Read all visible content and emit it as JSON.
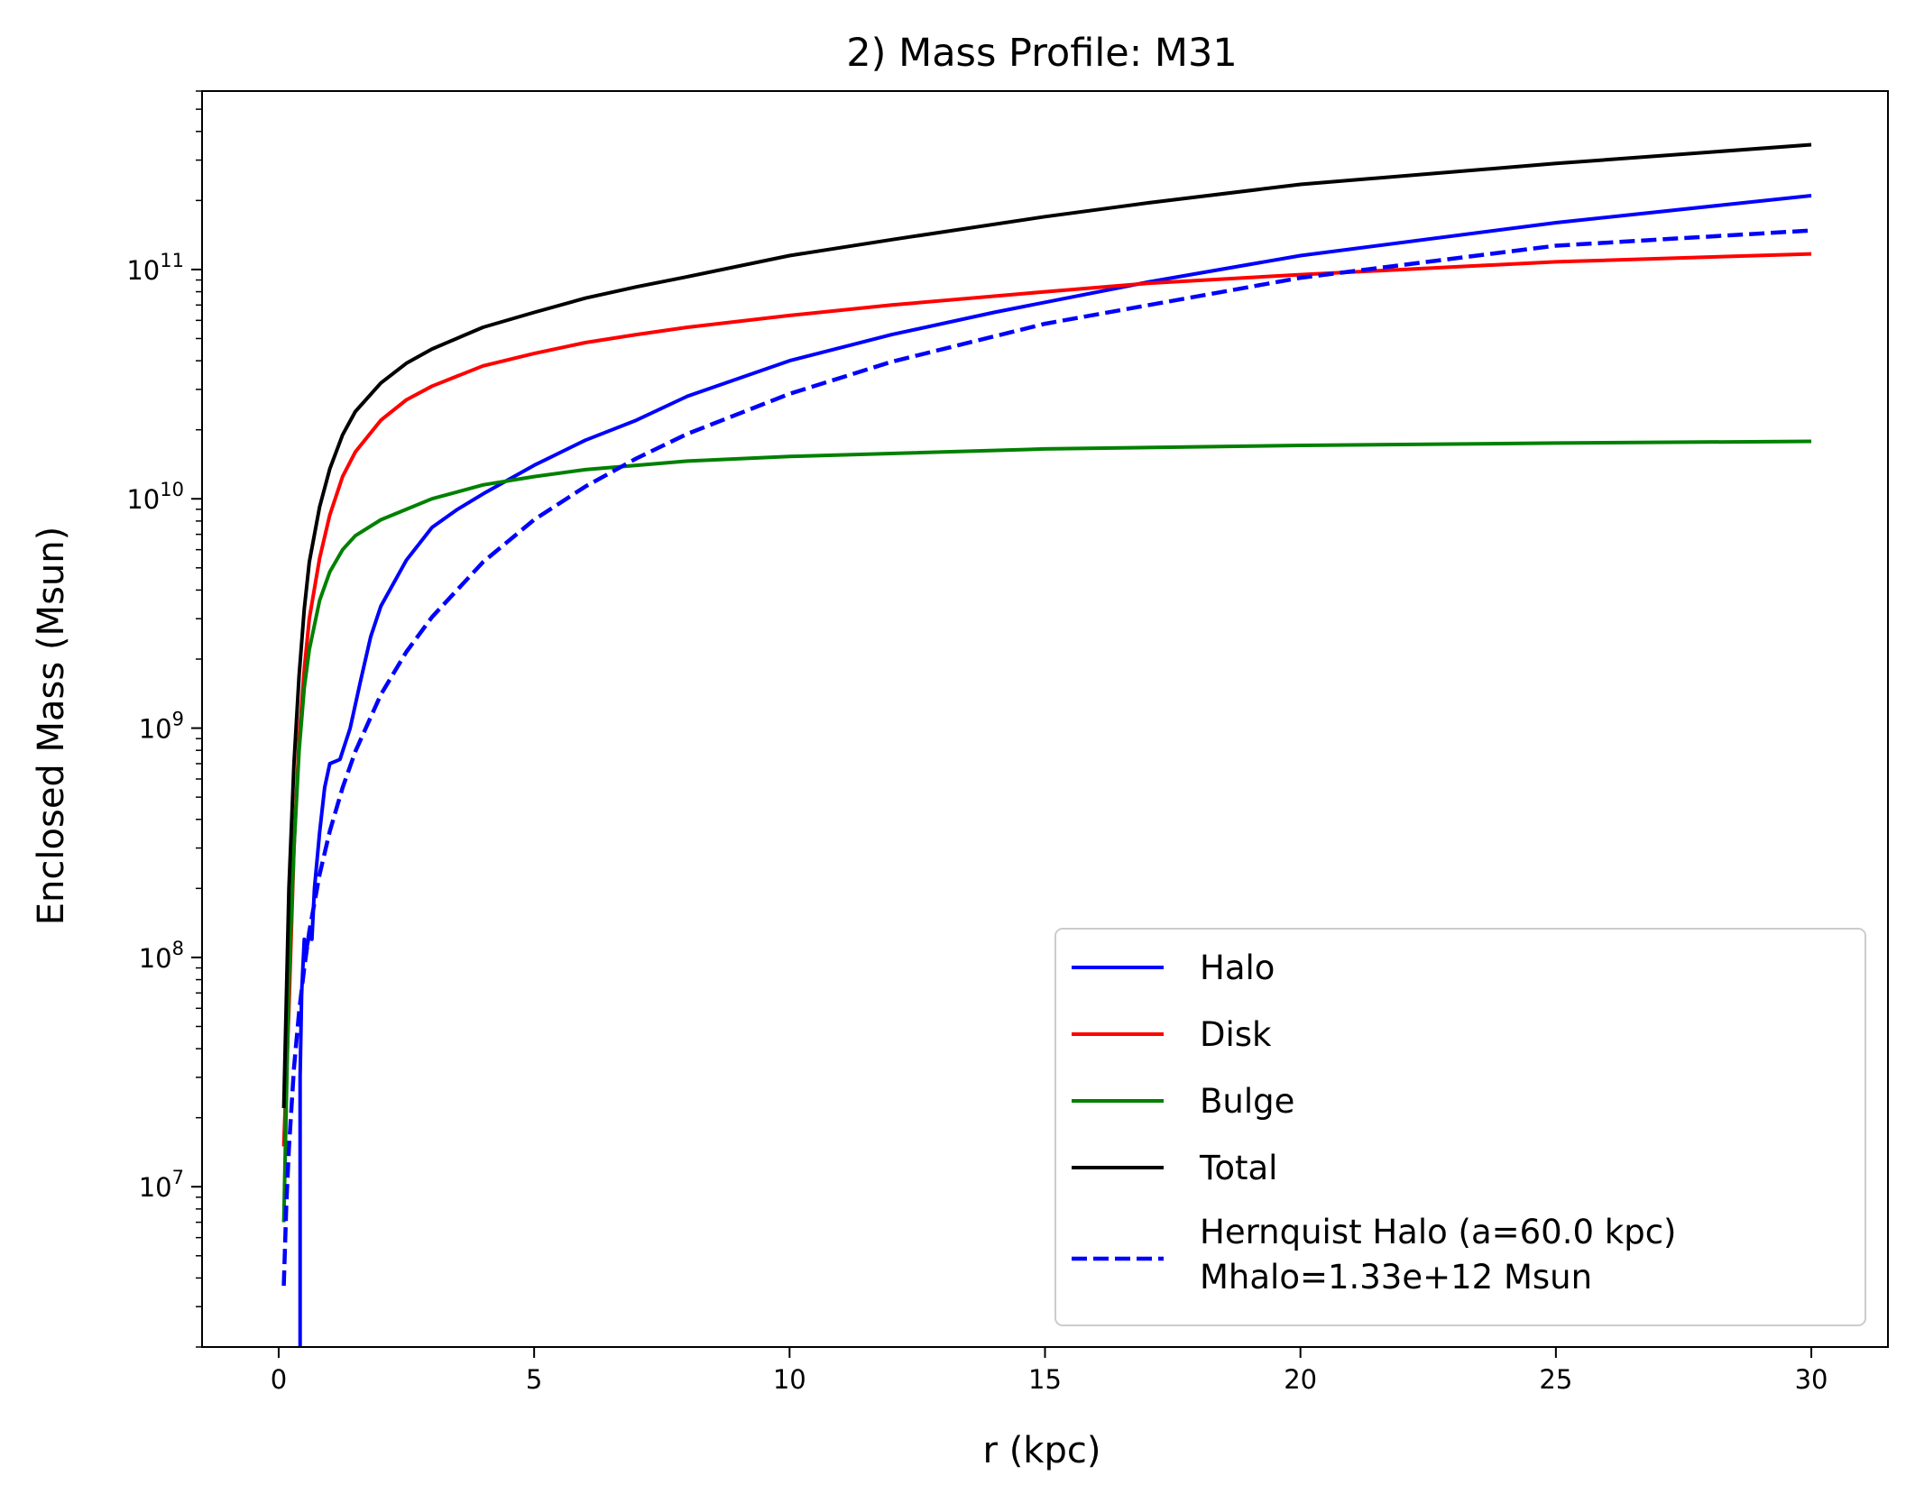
{
  "chart_data": {
    "type": "line",
    "title": "2) Mass Profile: M31",
    "xlabel": "r (kpc)",
    "ylabel": "Enclosed Mass (Msun)",
    "xlim": [
      -1.5,
      31.5
    ],
    "ylim": [
      2000000,
      600000000000
    ],
    "yscale": "log",
    "grid": false,
    "legend_position": "lower-right",
    "x_ticks": [
      {
        "value": 0,
        "label": "0"
      },
      {
        "value": 5,
        "label": "5"
      },
      {
        "value": 10,
        "label": "10"
      },
      {
        "value": 15,
        "label": "15"
      },
      {
        "value": 20,
        "label": "20"
      },
      {
        "value": 25,
        "label": "25"
      },
      {
        "value": 30,
        "label": "30"
      }
    ],
    "y_ticks": [
      {
        "value": 10000000,
        "base": "10",
        "exp": "7"
      },
      {
        "value": 100000000,
        "base": "10",
        "exp": "8"
      },
      {
        "value": 1000000000,
        "base": "10",
        "exp": "9"
      },
      {
        "value": 10000000000,
        "base": "10",
        "exp": "10"
      },
      {
        "value": 100000000000,
        "base": "10",
        "exp": "11"
      }
    ],
    "series": [
      {
        "name": "Halo",
        "color": "#0000ff",
        "dash": false,
        "x": [
          0.42,
          0.42,
          0.45,
          0.5,
          0.55,
          0.6,
          0.65,
          0.7,
          0.8,
          0.9,
          1.0,
          1.2,
          1.4,
          1.6,
          1.8,
          2.0,
          2.5,
          3.0,
          3.5,
          4.0,
          5.0,
          6.0,
          7.0,
          8.0,
          10.0,
          12.0,
          14.0,
          17.0,
          20.0,
          25.0,
          30.0
        ],
        "y": [
          2000000,
          30000000,
          70000000,
          120000000,
          110000000,
          125000000,
          120000000,
          200000000,
          350000000,
          550000000,
          700000000,
          730000000,
          1000000000,
          1600000000,
          2500000000,
          3400000000,
          5400000000,
          7500000000,
          9000000000,
          10500000000,
          14000000000,
          18000000000,
          22000000000,
          28000000000,
          40000000000,
          52000000000,
          65000000000,
          88000000000,
          115000000000,
          160000000000,
          210000000000
        ]
      },
      {
        "name": "Disk",
        "color": "#ff0000",
        "dash": false,
        "x": [
          0.1,
          0.2,
          0.3,
          0.4,
          0.5,
          0.6,
          0.8,
          1.0,
          1.25,
          1.5,
          2.0,
          2.5,
          3.0,
          4.0,
          5.0,
          6.0,
          7.0,
          8.0,
          10.0,
          12.0,
          15.0,
          17.0,
          20.0,
          25.0,
          30.0
        ],
        "y": [
          15000000,
          60000000,
          300000000,
          900000000,
          1800000000,
          3000000000,
          5500000000,
          8500000000,
          12500000000,
          16000000000,
          22000000000,
          27000000000,
          31000000000,
          38000000000,
          43000000000,
          48000000000,
          52000000000,
          56000000000,
          63000000000,
          70000000000,
          80000000000,
          87000000000,
          95000000000,
          108000000000,
          117000000000
        ]
      },
      {
        "name": "Bulge",
        "color": "#008000",
        "dash": false,
        "x": [
          0.1,
          0.2,
          0.3,
          0.4,
          0.5,
          0.6,
          0.8,
          1.0,
          1.25,
          1.5,
          2.0,
          2.5,
          3.0,
          4.0,
          5.0,
          6.0,
          7.0,
          8.0,
          10.0,
          15.0,
          20.0,
          25.0,
          30.0
        ],
        "y": [
          7000000,
          80000000,
          300000000,
          800000000,
          1500000000,
          2200000000,
          3600000000,
          4800000000,
          6000000000,
          6900000000,
          8100000000,
          9000000000,
          10000000000,
          11500000000,
          12500000000,
          13400000000,
          14000000000,
          14600000000,
          15300000000,
          16500000000,
          17100000000,
          17500000000,
          17800000000
        ]
      },
      {
        "name": "Total",
        "color": "#000000",
        "dash": false,
        "x": [
          0.1,
          0.2,
          0.3,
          0.4,
          0.5,
          0.6,
          0.8,
          1.0,
          1.25,
          1.5,
          2.0,
          2.5,
          3.0,
          4.0,
          5.0,
          6.0,
          7.0,
          8.0,
          10.0,
          12.0,
          15.0,
          17.0,
          20.0,
          25.0,
          30.0
        ],
        "y": [
          22000000,
          200000000,
          700000000,
          1700000000,
          3300000000,
          5300000000,
          9200000000,
          13500000000,
          19000000000,
          24000000000,
          32000000000,
          39000000000,
          45000000000,
          56000000000,
          65000000000,
          75000000000,
          84000000000,
          93000000000,
          115000000000,
          135000000000,
          170000000000,
          195000000000,
          235000000000,
          290000000000,
          350000000000
        ]
      },
      {
        "name": "Hernquist Halo (a=60.0 kpc)\nMhalo=1.33e+12 Msun",
        "color": "#0000ff",
        "dash": true,
        "x": [
          0.1,
          0.15,
          0.2,
          0.3,
          0.4,
          0.5,
          0.6,
          0.8,
          1.0,
          1.25,
          1.5,
          2.0,
          2.5,
          3.0,
          4.0,
          5.0,
          6.0,
          7.0,
          8.0,
          10.0,
          12.0,
          15.0,
          20.0,
          25.0,
          30.0
        ],
        "y": [
          3700000,
          8300000,
          14700000,
          33000000,
          58000000,
          90000000,
          130000000,
          230000000,
          355000000,
          550000000,
          790000000,
          1400000000,
          2150000000,
          3050000000,
          5300000000,
          8100000000,
          11300000000,
          15000000000,
          19200000000,
          28700000000,
          39600000000,
          58000000000,
          92000000000,
          127000000000,
          148000000000
        ]
      }
    ],
    "legend": {
      "entries": [
        {
          "label": "Halo",
          "color": "#0000ff",
          "dash": false
        },
        {
          "label": "Disk",
          "color": "#ff0000",
          "dash": false
        },
        {
          "label": "Bulge",
          "color": "#008000",
          "dash": false
        },
        {
          "label": "Total",
          "color": "#000000",
          "dash": false
        }
      ],
      "hernquist_line1": "Hernquist Halo (a=60.0 kpc)",
      "hernquist_line2": "Mhalo=1.33e+12 Msun",
      "hernquist_color": "#0000ff"
    }
  }
}
